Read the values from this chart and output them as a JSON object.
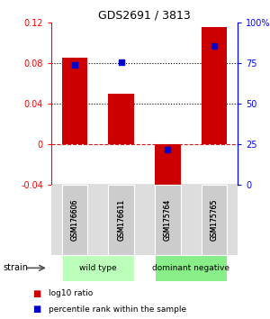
{
  "title": "GDS2691 / 3813",
  "samples": [
    "GSM176606",
    "GSM176611",
    "GSM175764",
    "GSM175765"
  ],
  "log10_ratio": [
    0.085,
    0.05,
    -0.052,
    0.115
  ],
  "percentile_rank": [
    0.74,
    0.755,
    0.22,
    0.855
  ],
  "bar_color": "#cc0000",
  "dot_color": "#0000cc",
  "ylim_left": [
    -0.04,
    0.12
  ],
  "ylim_right": [
    0,
    1.0
  ],
  "yticks_left": [
    -0.04,
    0,
    0.04,
    0.08,
    0.12
  ],
  "ytick_labels_left": [
    "-0.04",
    "0",
    "0.04",
    "0.08",
    "0.12"
  ],
  "yticks_right": [
    0,
    0.25,
    0.5,
    0.75,
    1.0
  ],
  "ytick_labels_right": [
    "0",
    "25",
    "50",
    "75",
    "100%"
  ],
  "hlines_dotted": [
    0.04,
    0.08
  ],
  "hline_dash": 0.0,
  "groups": [
    {
      "label": "wild type",
      "samples": [
        0,
        1
      ],
      "color": "#bbffbb"
    },
    {
      "label": "dominant negative",
      "samples": [
        2,
        3
      ],
      "color": "#88ee88"
    }
  ],
  "legend_items": [
    {
      "color": "#cc0000",
      "label": "log10 ratio"
    },
    {
      "color": "#0000cc",
      "label": "percentile rank within the sample"
    }
  ],
  "strain_label": "strain",
  "bar_width": 0.55
}
